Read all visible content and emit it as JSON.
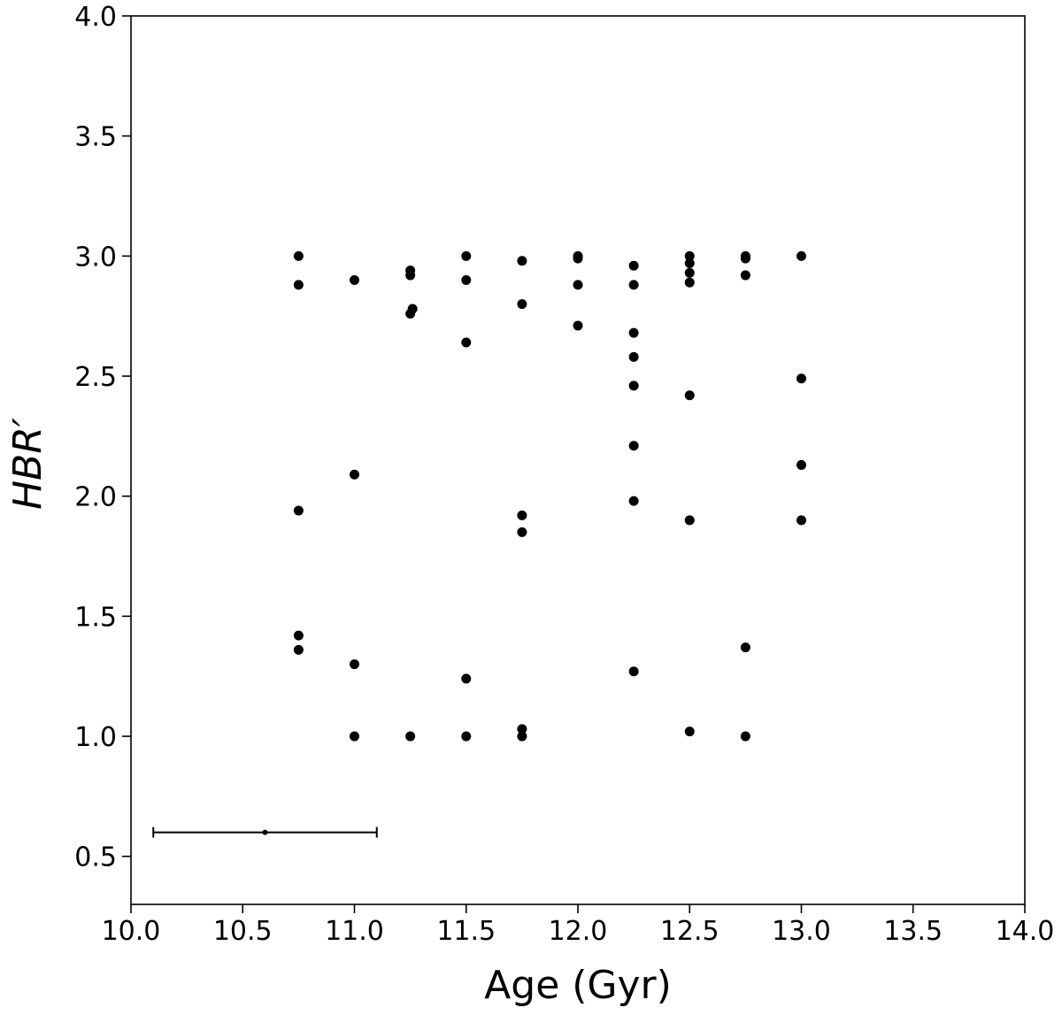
{
  "chart_data": {
    "type": "scatter",
    "xlabel": "Age (Gyr)",
    "ylabel": "HBR′",
    "xlim": [
      10.0,
      14.0
    ],
    "ylim": [
      0.3,
      4.0
    ],
    "x_ticks": [
      "10.0",
      "10.5",
      "11.0",
      "11.5",
      "12.0",
      "12.5",
      "13.0",
      "13.5",
      "14.0"
    ],
    "y_ticks": [
      "0.5",
      "1.0",
      "1.5",
      "2.0",
      "2.5",
      "3.0",
      "3.5",
      "4.0"
    ],
    "grid": false,
    "marker_color": "#000000",
    "series": [
      {
        "points": [
          [
            10.75,
            3.0
          ],
          [
            10.75,
            2.88
          ],
          [
            10.75,
            1.94
          ],
          [
            10.75,
            1.42
          ],
          [
            10.75,
            1.36
          ],
          [
            11.0,
            2.9
          ],
          [
            11.0,
            2.09
          ],
          [
            11.0,
            1.3
          ],
          [
            11.0,
            1.0
          ],
          [
            11.25,
            2.94
          ],
          [
            11.25,
            2.92
          ],
          [
            11.26,
            2.78
          ],
          [
            11.25,
            2.76
          ],
          [
            11.25,
            1.0
          ],
          [
            11.5,
            3.0
          ],
          [
            11.5,
            2.9
          ],
          [
            11.5,
            2.64
          ],
          [
            11.5,
            1.24
          ],
          [
            11.5,
            1.0
          ],
          [
            11.75,
            2.98
          ],
          [
            11.75,
            2.8
          ],
          [
            11.75,
            1.92
          ],
          [
            11.75,
            1.85
          ],
          [
            11.75,
            1.03
          ],
          [
            11.75,
            1.0
          ],
          [
            12.0,
            3.0
          ],
          [
            12.0,
            2.99
          ],
          [
            12.0,
            2.88
          ],
          [
            12.0,
            2.71
          ],
          [
            12.25,
            2.96
          ],
          [
            12.25,
            2.88
          ],
          [
            12.25,
            2.68
          ],
          [
            12.25,
            2.58
          ],
          [
            12.25,
            2.46
          ],
          [
            12.25,
            2.21
          ],
          [
            12.25,
            1.98
          ],
          [
            12.25,
            1.27
          ],
          [
            12.5,
            3.0
          ],
          [
            12.5,
            2.97
          ],
          [
            12.5,
            2.93
          ],
          [
            12.5,
            2.89
          ],
          [
            12.5,
            2.42
          ],
          [
            12.5,
            1.9
          ],
          [
            12.5,
            1.02
          ],
          [
            12.75,
            3.0
          ],
          [
            12.75,
            2.99
          ],
          [
            12.75,
            2.92
          ],
          [
            12.75,
            1.37
          ],
          [
            12.75,
            1.0
          ],
          [
            13.0,
            3.0
          ],
          [
            13.0,
            2.49
          ],
          [
            13.0,
            2.13
          ],
          [
            13.0,
            1.9
          ]
        ]
      }
    ],
    "error_bar": {
      "x": 10.6,
      "y": 0.6,
      "xerr": 0.5
    }
  }
}
